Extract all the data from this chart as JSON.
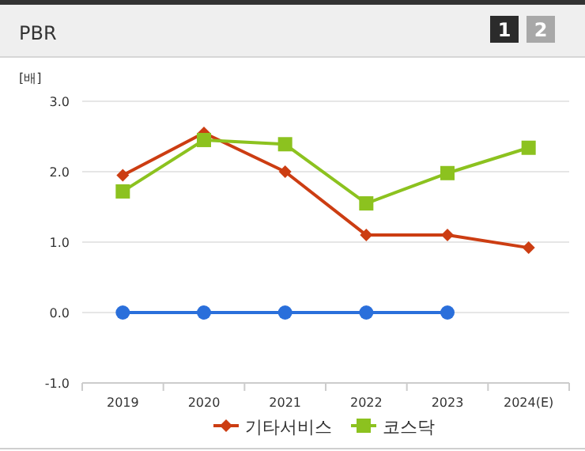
{
  "chart_data": {
    "type": "line",
    "title": "PBR",
    "ylabel": "[배]",
    "categories": [
      "2019",
      "2020",
      "2021",
      "2022",
      "2023",
      "2024(E)"
    ],
    "series": [
      {
        "color": "#2a6fdb",
        "marker": "circle",
        "values": [
          0,
          0,
          0,
          0,
          0,
          null
        ]
      },
      {
        "name": "기타서비스",
        "color": "#cc3d12",
        "marker": "diamond",
        "values": [
          1.95,
          2.55,
          2.0,
          1.1,
          1.1,
          0.92
        ]
      },
      {
        "name": "코스닥",
        "color": "#8cc21f",
        "marker": "square",
        "values": [
          1.72,
          2.45,
          2.39,
          1.55,
          1.98,
          2.34
        ]
      }
    ],
    "ylim": [
      -1,
      3
    ],
    "yticks": [
      {
        "value": -1,
        "label": "-1.0"
      },
      {
        "value": 0,
        "label": "0.0"
      },
      {
        "value": 1,
        "label": "1.0"
      },
      {
        "value": 2,
        "label": "2.0"
      },
      {
        "value": 3,
        "label": "3.0"
      }
    ],
    "grid": "y",
    "legend": "bottom",
    "annotations": [
      "1",
      "2"
    ]
  }
}
